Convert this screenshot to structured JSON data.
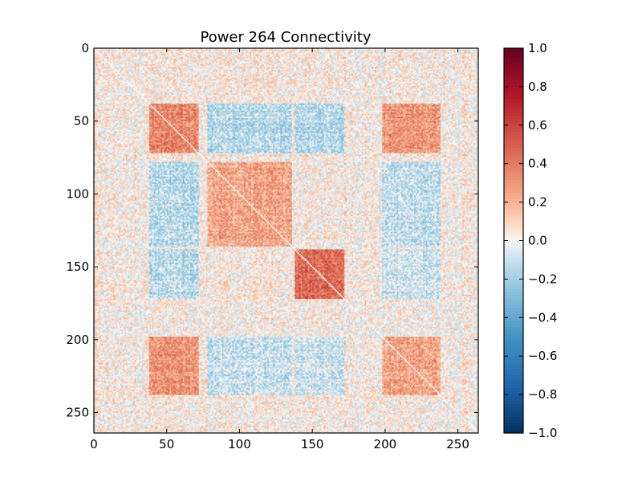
{
  "chart_data": {
    "type": "heatmap",
    "title": "Power 264 Connectivity",
    "xlabel": "",
    "ylabel": "",
    "n": 264,
    "xlim": [
      0,
      264
    ],
    "ylim": [
      264,
      0
    ],
    "x_ticks": [
      0,
      50,
      100,
      150,
      200,
      250
    ],
    "y_ticks": [
      0,
      50,
      100,
      150,
      200,
      250
    ],
    "colormap": "RdBu_r",
    "colorbar": {
      "min": -1.0,
      "max": 1.0,
      "ticks": [
        "1.0",
        "0.8",
        "0.6",
        "0.4",
        "0.2",
        "0.0",
        "−0.2",
        "−0.4",
        "−0.6",
        "−0.8",
        "−1.0"
      ]
    },
    "block_structure": [
      {
        "rows": [
          38,
          72
        ],
        "cols": [
          38,
          72
        ],
        "value": 0.35
      },
      {
        "rows": [
          78,
          136
        ],
        "cols": [
          78,
          136
        ],
        "value": 0.25
      },
      {
        "rows": [
          138,
          172
        ],
        "cols": [
          138,
          172
        ],
        "value": 0.45
      },
      {
        "rows": [
          198,
          238
        ],
        "cols": [
          198,
          238
        ],
        "value": 0.25
      },
      {
        "rows": [
          38,
          72
        ],
        "cols": [
          198,
          238
        ],
        "value": 0.3
      },
      {
        "rows": [
          198,
          238
        ],
        "cols": [
          38,
          72
        ],
        "value": 0.3
      },
      {
        "rows": [
          38,
          72
        ],
        "cols": [
          78,
          136
        ],
        "value": -0.15
      },
      {
        "rows": [
          38,
          72
        ],
        "cols": [
          138,
          172
        ],
        "value": -0.15
      },
      {
        "rows": [
          78,
          136
        ],
        "cols": [
          38,
          72
        ],
        "value": -0.15
      },
      {
        "rows": [
          138,
          172
        ],
        "cols": [
          38,
          72
        ],
        "value": -0.15
      },
      {
        "rows": [
          78,
          136
        ],
        "cols": [
          198,
          238
        ],
        "value": -0.12
      },
      {
        "rows": [
          198,
          238
        ],
        "cols": [
          78,
          136
        ],
        "value": -0.12
      },
      {
        "rows": [
          138,
          172
        ],
        "cols": [
          198,
          238
        ],
        "value": -0.1
      },
      {
        "rows": [
          198,
          238
        ],
        "cols": [
          138,
          172
        ],
        "value": -0.1
      }
    ],
    "grid": false
  }
}
